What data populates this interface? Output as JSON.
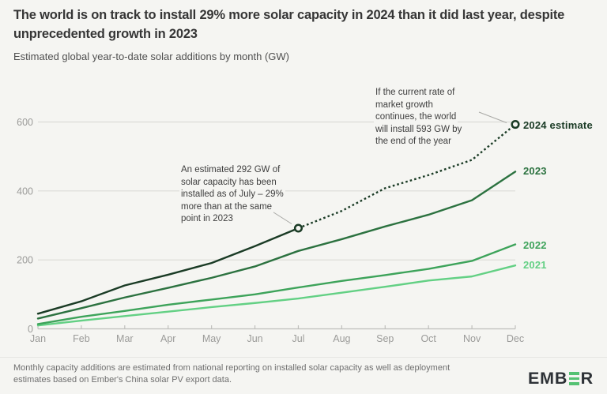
{
  "header": {
    "title": "The world is on track to install 29% more solar capacity in 2024 than it did last year, despite unprecedented growth in 2023",
    "subtitle": "Estimated global year-to-date solar additions by month (GW)"
  },
  "chart_data": {
    "type": "line",
    "title": "Estimated global year-to-date solar additions by month (GW)",
    "unit": "GW",
    "x": [
      "Jan",
      "Feb",
      "Mar",
      "Apr",
      "May",
      "Jun",
      "Jul",
      "Aug",
      "Sep",
      "Oct",
      "Nov",
      "Dec"
    ],
    "yticks": [
      0,
      200,
      400,
      600
    ],
    "ylim": [
      0,
      650
    ],
    "grid": "horizontal",
    "legend_position": "right-of-line-ends",
    "series": [
      {
        "name": "2021",
        "label": "2021",
        "color": "#63d084",
        "style": "solid",
        "start_month": 0,
        "values": [
          10,
          24,
          37,
          50,
          63,
          75,
          88,
          105,
          122,
          140,
          152,
          184
        ]
      },
      {
        "name": "2022",
        "label": "2022",
        "color": "#3da35a",
        "style": "solid",
        "start_month": 0,
        "values": [
          14,
          35,
          52,
          70,
          85,
          100,
          120,
          139,
          156,
          174,
          197,
          245
        ]
      },
      {
        "name": "2023",
        "label": "2023",
        "color": "#2c7240",
        "style": "solid",
        "start_month": 0,
        "values": [
          30,
          60,
          91,
          119,
          148,
          181,
          226,
          260,
          297,
          331,
          373,
          456
        ]
      },
      {
        "name": "2024-actual",
        "label": "",
        "color": "#1a3b25",
        "style": "solid",
        "start_month": 0,
        "values": [
          44,
          80,
          126,
          157,
          191,
          240,
          292
        ]
      },
      {
        "name": "2024-projection",
        "label": "2024 estimate",
        "color": "#1a3b25",
        "style": "dotted",
        "start_month": 6,
        "values": [
          292,
          342,
          408,
          446,
          490,
          593
        ],
        "markers": [
          {
            "month_index": 6,
            "value": 292
          },
          {
            "month_index": 11,
            "value": 593
          }
        ]
      }
    ],
    "annotations": [
      {
        "target": "Jul 2024",
        "value_gw": 292,
        "text": "An estimated 292 GW of solar capacity has been installed as of July – 29% more than at the same point in 2023"
      },
      {
        "target": "Dec 2024",
        "value_gw": 593,
        "text": "If the current rate of market growth continues, the world will install 593 GW by the end of the year"
      }
    ]
  },
  "annotations": {
    "july": {
      "lines": [
        "An estimated 292 GW of",
        "solar capacity has been",
        "installed as of July – 29%",
        "more than at the same",
        "point in 2023"
      ]
    },
    "december": {
      "lines": [
        "If the current rate of",
        "market growth",
        "continues, the world",
        "will install 593 GW by",
        "the end of the year"
      ]
    }
  },
  "colors": {
    "background": "#f5f5f2",
    "gridline": "#dbdbd8",
    "axis": "#bfbfbc",
    "axis_text": "#9b9b99",
    "leader_line": "#a8a8a5",
    "logo_green": "#55c273",
    "logo_dark": "#2d3136"
  },
  "footer": {
    "note_lines": [
      "Monthly capacity additions are estimated from national reporting on installed solar capacity as well as deployment",
      "estimates based on Ember's China solar PV export data."
    ],
    "logo": {
      "left": "EMB",
      "right": "R"
    }
  }
}
